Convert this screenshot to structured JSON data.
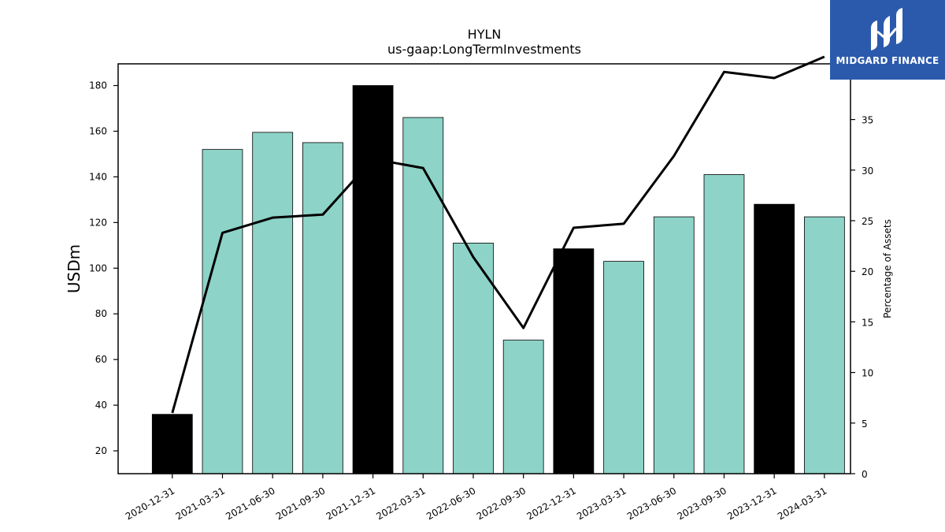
{
  "logo": {
    "text": "MIDGARD FINANCE"
  },
  "chart_data": {
    "type": "bar",
    "title": "HYLN",
    "subtitle": "us-gaap:LongTermInvestments",
    "ylabel": "USDm",
    "y2label": "Percentage of Assets",
    "categories": [
      "2020-12-31",
      "2021-03-31",
      "2021-06-30",
      "2021-09-30",
      "2021-12-31",
      "2022-03-31",
      "2022-06-30",
      "2022-09-30",
      "2022-12-31",
      "2023-03-31",
      "2023-06-30",
      "2023-09-30",
      "2023-12-31",
      "2024-03-31"
    ],
    "series": [
      {
        "type": "bar",
        "axis": "left",
        "values": [
          36,
          152,
          159.5,
          155,
          180,
          166,
          111,
          68.5,
          108.5,
          103,
          122.5,
          141,
          128,
          122.5
        ],
        "colors": [
          "#000000",
          "#8dd3c7",
          "#8dd3c7",
          "#8dd3c7",
          "#000000",
          "#8dd3c7",
          "#8dd3c7",
          "#8dd3c7",
          "#000000",
          "#8dd3c7",
          "#8dd3c7",
          "#8dd3c7",
          "#000000",
          "#8dd3c7"
        ]
      },
      {
        "type": "line",
        "axis": "right",
        "color": "#000000",
        "values": [
          6,
          23.8,
          25.3,
          25.6,
          31.1,
          30.2,
          21.4,
          14.4,
          24.3,
          24.7,
          31.4,
          39.7,
          39.1,
          41.2
        ]
      }
    ],
    "ylim": [
      10,
      189.5
    ],
    "y2lim": [
      0,
      40.5
    ],
    "yticks": [
      20,
      40,
      60,
      80,
      100,
      120,
      140,
      160,
      180
    ],
    "y2ticks": [
      0,
      5,
      10,
      15,
      20,
      25,
      30,
      35,
      40
    ],
    "grid": false,
    "legend": "none"
  }
}
